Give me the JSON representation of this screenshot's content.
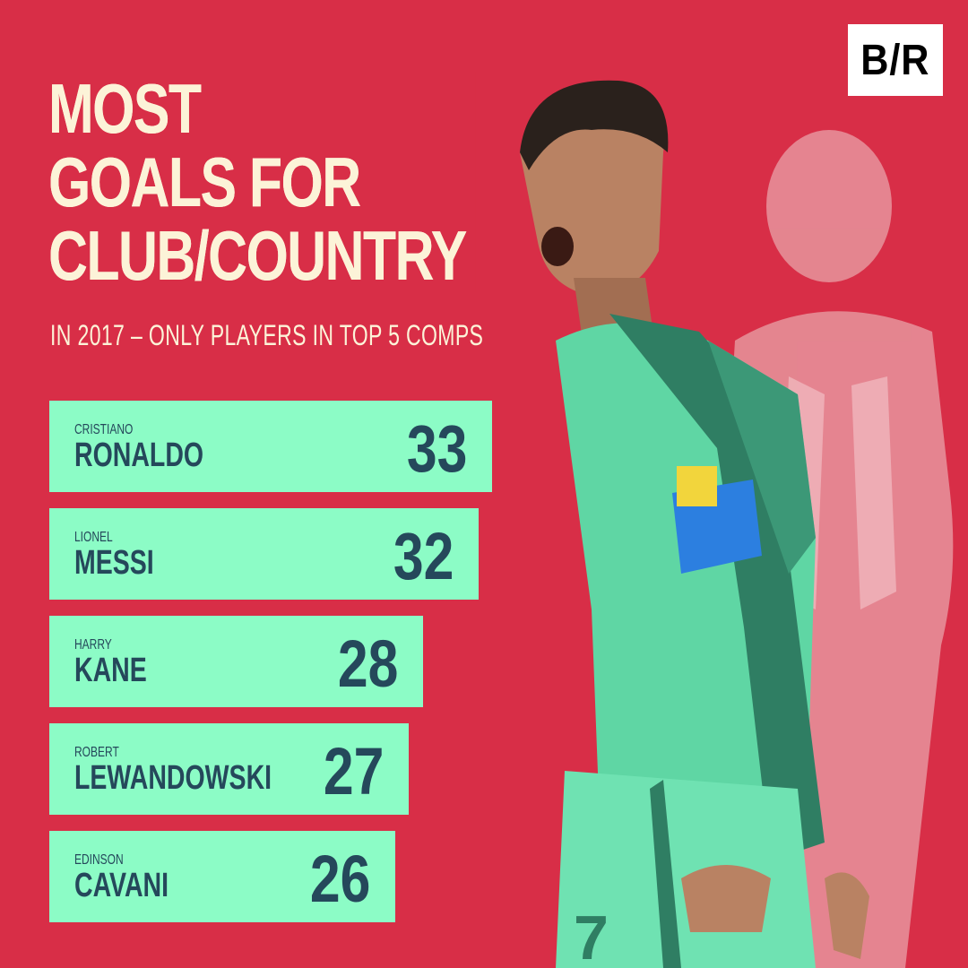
{
  "brand": {
    "logo": "B/R"
  },
  "title": {
    "line1": "MOST",
    "line2": "GOALS FOR",
    "line3": "CLUB/COUNTRY"
  },
  "subtitle": "IN 2017 – ONLY PLAYERS IN TOP 5 COMPS",
  "colors": {
    "background": "#d82e47",
    "bar": "#8cfcc6",
    "bar_text": "#25485b",
    "title": "#fcf3d8",
    "frame": "#0c6b30"
  },
  "chart_data": {
    "type": "bar",
    "orientation": "horizontal",
    "categories": [
      "CRISTIANO RONALDO",
      "LIONEL MESSI",
      "HARRY KANE",
      "ROBERT LEWANDOWSKI",
      "EDINSON CAVANI"
    ],
    "values": [
      33,
      32,
      28,
      27,
      26
    ],
    "players": [
      {
        "first": "CRISTIANO",
        "last": "RONALDO",
        "goals": 33
      },
      {
        "first": "LIONEL",
        "last": "MESSI",
        "goals": 32
      },
      {
        "first": "HARRY",
        "last": "KANE",
        "goals": 28
      },
      {
        "first": "ROBERT",
        "last": "LEWANDOWSKI",
        "goals": 27
      },
      {
        "first": "EDINSON",
        "last": "CAVANI",
        "goals": 26
      }
    ],
    "grid": false,
    "legend": "none"
  }
}
